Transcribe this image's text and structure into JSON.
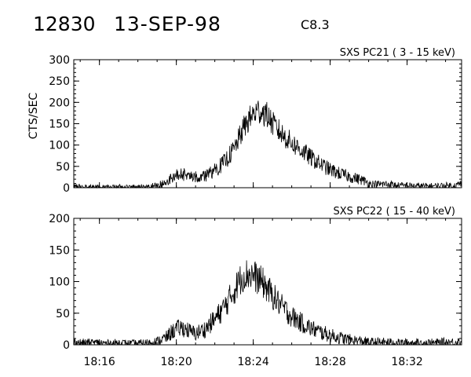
{
  "header": {
    "event_id": "12830",
    "date": "13-SEP-98",
    "flare_class": "C8.3"
  },
  "chart_data": [
    {
      "type": "line",
      "title": "SXS PC21  (  3 - 15 keV)",
      "ylabel": "CTS/SEC",
      "xlabel": "",
      "xlim": [
        "18:14:40",
        "18:34:50"
      ],
      "ylim": [
        0,
        300
      ],
      "yticks": [
        0,
        50,
        100,
        150,
        200,
        250,
        300
      ],
      "xticks": [
        "18:16",
        "18:20",
        "18:24",
        "18:28",
        "18:32"
      ],
      "x_tick_labels_shown": false,
      "series": [
        {
          "x": [
            "18:14:40",
            "18:15:00",
            "18:15:30",
            "18:16:00",
            "18:16:30",
            "18:17:00",
            "18:17:30",
            "18:18:00",
            "18:18:30",
            "18:19:00",
            "18:19:30",
            "18:19:45",
            "18:20:00",
            "18:20:15",
            "18:20:30",
            "18:20:45",
            "18:21:00",
            "18:21:30",
            "18:22:00",
            "18:22:30",
            "18:23:00",
            "18:23:15",
            "18:23:30",
            "18:23:45",
            "18:24:00",
            "18:24:15",
            "18:24:30",
            "18:24:45",
            "18:25:00",
            "18:25:30",
            "18:26:00",
            "18:26:30",
            "18:27:00",
            "18:27:30",
            "18:28:00",
            "18:28:30",
            "18:29:00",
            "18:29:30",
            "18:29:50",
            "18:30:00",
            "18:30:20",
            "18:30:40",
            "18:31:00",
            "18:31:30",
            "18:32:00",
            "18:32:30",
            "18:33:00",
            "18:33:30",
            "18:34:00",
            "18:34:30",
            "18:34:50"
          ],
          "values": [
            3,
            2,
            2,
            2,
            1,
            2,
            1,
            2,
            3,
            5,
            12,
            22,
            30,
            32,
            30,
            26,
            25,
            28,
            40,
            60,
            90,
            115,
            140,
            158,
            172,
            180,
            178,
            168,
            150,
            125,
            105,
            88,
            70,
            55,
            42,
            33,
            26,
            20,
            15,
            10,
            8,
            8,
            9,
            5,
            5,
            4,
            4,
            4,
            5,
            5,
            10
          ]
        }
      ]
    },
    {
      "type": "line",
      "title": "SXS PC22  ( 15 - 40 keV)",
      "ylabel": "",
      "xlabel": "",
      "xlim": [
        "18:14:40",
        "18:34:50"
      ],
      "ylim": [
        0,
        200
      ],
      "yticks": [
        0,
        50,
        100,
        150,
        200
      ],
      "xticks": [
        "18:16",
        "18:20",
        "18:24",
        "18:28",
        "18:32"
      ],
      "x_tick_labels_shown": true,
      "series": [
        {
          "x": [
            "18:14:40",
            "18:15:00",
            "18:15:30",
            "18:16:00",
            "18:16:30",
            "18:17:00",
            "18:17:30",
            "18:18:00",
            "18:18:30",
            "18:19:00",
            "18:19:30",
            "18:19:45",
            "18:20:00",
            "18:20:15",
            "18:20:30",
            "18:20:45",
            "18:21:00",
            "18:21:30",
            "18:22:00",
            "18:22:30",
            "18:23:00",
            "18:23:15",
            "18:23:30",
            "18:23:45",
            "18:24:00",
            "18:24:15",
            "18:24:30",
            "18:24:45",
            "18:25:00",
            "18:25:30",
            "18:26:00",
            "18:26:30",
            "18:27:00",
            "18:27:30",
            "18:28:00",
            "18:28:30",
            "18:29:00",
            "18:29:30",
            "18:29:50",
            "18:30:00",
            "18:30:20",
            "18:30:40",
            "18:31:00",
            "18:31:30",
            "18:32:00",
            "18:32:30",
            "18:33:00",
            "18:33:30",
            "18:34:00",
            "18:34:30",
            "18:34:50"
          ],
          "values": [
            4,
            3,
            3,
            3,
            2,
            3,
            2,
            2,
            3,
            5,
            12,
            20,
            25,
            27,
            25,
            20,
            18,
            25,
            40,
            60,
            85,
            100,
            110,
            112,
            110,
            104,
            98,
            88,
            78,
            60,
            45,
            35,
            26,
            20,
            15,
            11,
            8,
            6,
            5,
            4,
            4,
            4,
            4,
            3,
            3,
            3,
            3,
            3,
            4,
            4,
            6
          ]
        }
      ]
    }
  ]
}
